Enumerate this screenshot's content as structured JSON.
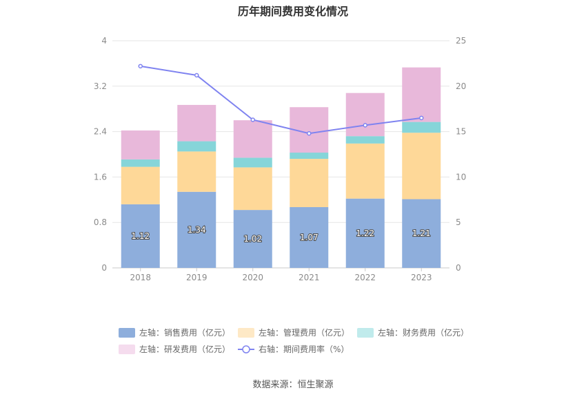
{
  "title": "历年期间费用变化情况",
  "source": "数据来源：恒生聚源",
  "chart_data": {
    "type": "bar",
    "stacked": true,
    "categories": [
      "2018",
      "2019",
      "2020",
      "2021",
      "2022",
      "2023"
    ],
    "left_axis": {
      "ylim": [
        0,
        4
      ],
      "ticks": [
        "0",
        "0.8",
        "1.6",
        "2.4",
        "3.2",
        "4"
      ]
    },
    "right_axis": {
      "ylim": [
        0,
        25
      ],
      "ticks": [
        "0",
        "5",
        "10",
        "15",
        "20",
        "25"
      ]
    },
    "series": [
      {
        "name": "左轴：销售费用（亿元）",
        "type": "bar",
        "axis": "left",
        "color": "#8eaedc",
        "values": [
          1.12,
          1.34,
          1.02,
          1.07,
          1.22,
          1.21
        ],
        "labels": [
          "1.12",
          "1.34",
          "1.02",
          "1.07",
          "1.22",
          "1.21"
        ]
      },
      {
        "name": "左轴：管理费用（亿元）",
        "type": "bar",
        "axis": "left",
        "color": "#fed898",
        "legend_color": "#fee9c6",
        "values": [
          0.66,
          0.71,
          0.75,
          0.85,
          0.97,
          1.17
        ]
      },
      {
        "name": "左轴：财务费用（亿元）",
        "type": "bar",
        "axis": "left",
        "color": "#86d5d9",
        "legend_color": "#c0ebec",
        "values": [
          0.13,
          0.18,
          0.17,
          0.11,
          0.13,
          0.19
        ]
      },
      {
        "name": "左轴：研发费用（亿元）",
        "type": "bar",
        "axis": "left",
        "color": "#e8b8da",
        "legend_color": "#f5dcee",
        "values": [
          0.51,
          0.64,
          0.66,
          0.8,
          0.76,
          0.96
        ]
      },
      {
        "name": "右轴：期间费用率（%）",
        "type": "line",
        "axis": "right",
        "color": "#7f83f0",
        "values": [
          22.2,
          21.2,
          16.3,
          14.8,
          15.7,
          16.5
        ]
      }
    ],
    "legend_position": "bottom",
    "grid": true
  }
}
